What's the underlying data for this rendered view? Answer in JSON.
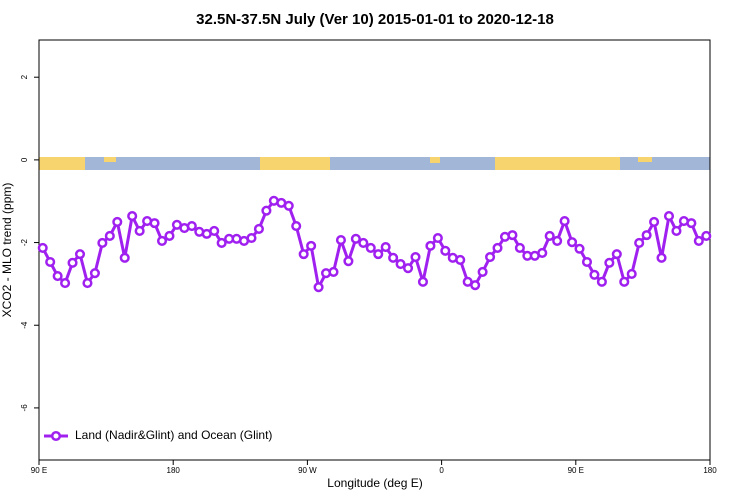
{
  "chart_data": {
    "type": "line",
    "title": "32.5N-37.5N July (Ver 10)   2015-01-01 to 2020-12-18",
    "x_label": "Longitude (deg E)",
    "y_label": "XCO2 - MLO trend (ppm)",
    "legend_position": "lower left",
    "xlim": [
      90,
      540
    ],
    "xticks": [
      {
        "value": 90,
        "label": "90 E"
      },
      {
        "value": 180,
        "label": "180"
      },
      {
        "value": 270,
        "label": "90 W"
      },
      {
        "value": 360,
        "label": "0"
      },
      {
        "value": 450,
        "label": "90 E"
      },
      {
        "value": 540,
        "label": "180"
      }
    ],
    "ylim": [
      -7.26,
      2.9
    ],
    "yticks": [
      -6,
      -4,
      -2,
      0,
      2
    ],
    "x": [
      92.5,
      97.5,
      102.5,
      107.5,
      112.5,
      117.5,
      122.5,
      127.5,
      132.5,
      137.5,
      142.5,
      147.5,
      152.5,
      157.5,
      162.5,
      167.5,
      172.5,
      177.5,
      182.5,
      187.5,
      192.5,
      197.5,
      202.5,
      207.5,
      212.5,
      217.5,
      222.5,
      227.5,
      232.5,
      237.5,
      242.5,
      247.5,
      252.5,
      257.5,
      262.5,
      267.5,
      272.5,
      277.5,
      282.5,
      287.5,
      292.5,
      297.5,
      302.5,
      307.5,
      312.5,
      317.5,
      322.5,
      327.5,
      332.5,
      337.5,
      342.5,
      347.5,
      352.5,
      357.5,
      362.5,
      367.5,
      372.5,
      377.5,
      382.5,
      387.5,
      392.5,
      397.5,
      402.5,
      407.5,
      412.5,
      417.5,
      422.5,
      427.5,
      432.5,
      437.5,
      442.5,
      447.5,
      452.5,
      457.5,
      462.5,
      467.5,
      472.5,
      477.5,
      482.5,
      487.5,
      492.5,
      497.5,
      502.5,
      507.5,
      512.5,
      517.5,
      522.5,
      527.5,
      532.5,
      537.5
    ],
    "series": [
      {
        "name": "Land (Nadir&Glint) and Ocean (Glint)",
        "color": "#a020f0",
        "values": [
          -2.13,
          -2.47,
          -2.81,
          -2.98,
          -2.49,
          -2.28,
          -2.98,
          -2.74,
          -2.01,
          -1.84,
          -1.5,
          -2.37,
          -1.36,
          -1.72,
          -1.48,
          -1.53,
          -1.96,
          -1.84,
          -1.57,
          -1.65,
          -1.6,
          -1.74,
          -1.79,
          -1.72,
          -2.01,
          -1.91,
          -1.91,
          -1.96,
          -1.89,
          -1.67,
          -1.23,
          -0.99,
          -1.04,
          -1.11,
          -1.6,
          -2.28,
          -2.08,
          -3.08,
          -2.74,
          -2.71,
          -1.94,
          -2.45,
          -1.91,
          -2.01,
          -2.13,
          -2.28,
          -2.11,
          -2.37,
          -2.52,
          -2.62,
          -2.35,
          -2.95,
          -2.08,
          -1.89,
          -2.2,
          -2.37,
          -2.42,
          -2.95,
          -3.03,
          -2.71,
          -2.35,
          -2.13,
          -1.86,
          -1.82,
          -2.13,
          -2.32,
          -2.32,
          -2.25,
          -1.84,
          -1.96,
          -1.48,
          -1.99,
          -2.15,
          -2.47,
          -2.78,
          -2.95,
          -2.49,
          -2.28,
          -2.95,
          -2.76,
          -2.01,
          -1.82,
          -1.5,
          -2.37,
          -1.36,
          -1.72,
          -1.48,
          -1.53,
          -1.96,
          -1.84
        ]
      }
    ]
  }
}
